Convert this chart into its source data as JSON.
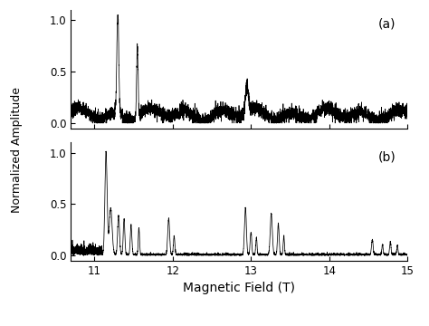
{
  "title_a": "(a)",
  "title_b": "(b)",
  "xlabel": "Magnetic Field (T)",
  "ylabel": "Normalized Amplitude",
  "xlim": [
    10.7,
    15.0
  ],
  "ylim_a": [
    -0.05,
    1.1
  ],
  "ylim_b": [
    -0.05,
    1.1
  ],
  "xticks_a": [
    11,
    12,
    13,
    14,
    15
  ],
  "xticks_b": [
    11,
    12,
    13,
    14,
    15
  ],
  "yticks": [
    0.0,
    0.5,
    1.0
  ],
  "background_color": "#ffffff",
  "line_color": "#000000",
  "figsize": [
    4.74,
    3.6
  ],
  "dpi": 100
}
